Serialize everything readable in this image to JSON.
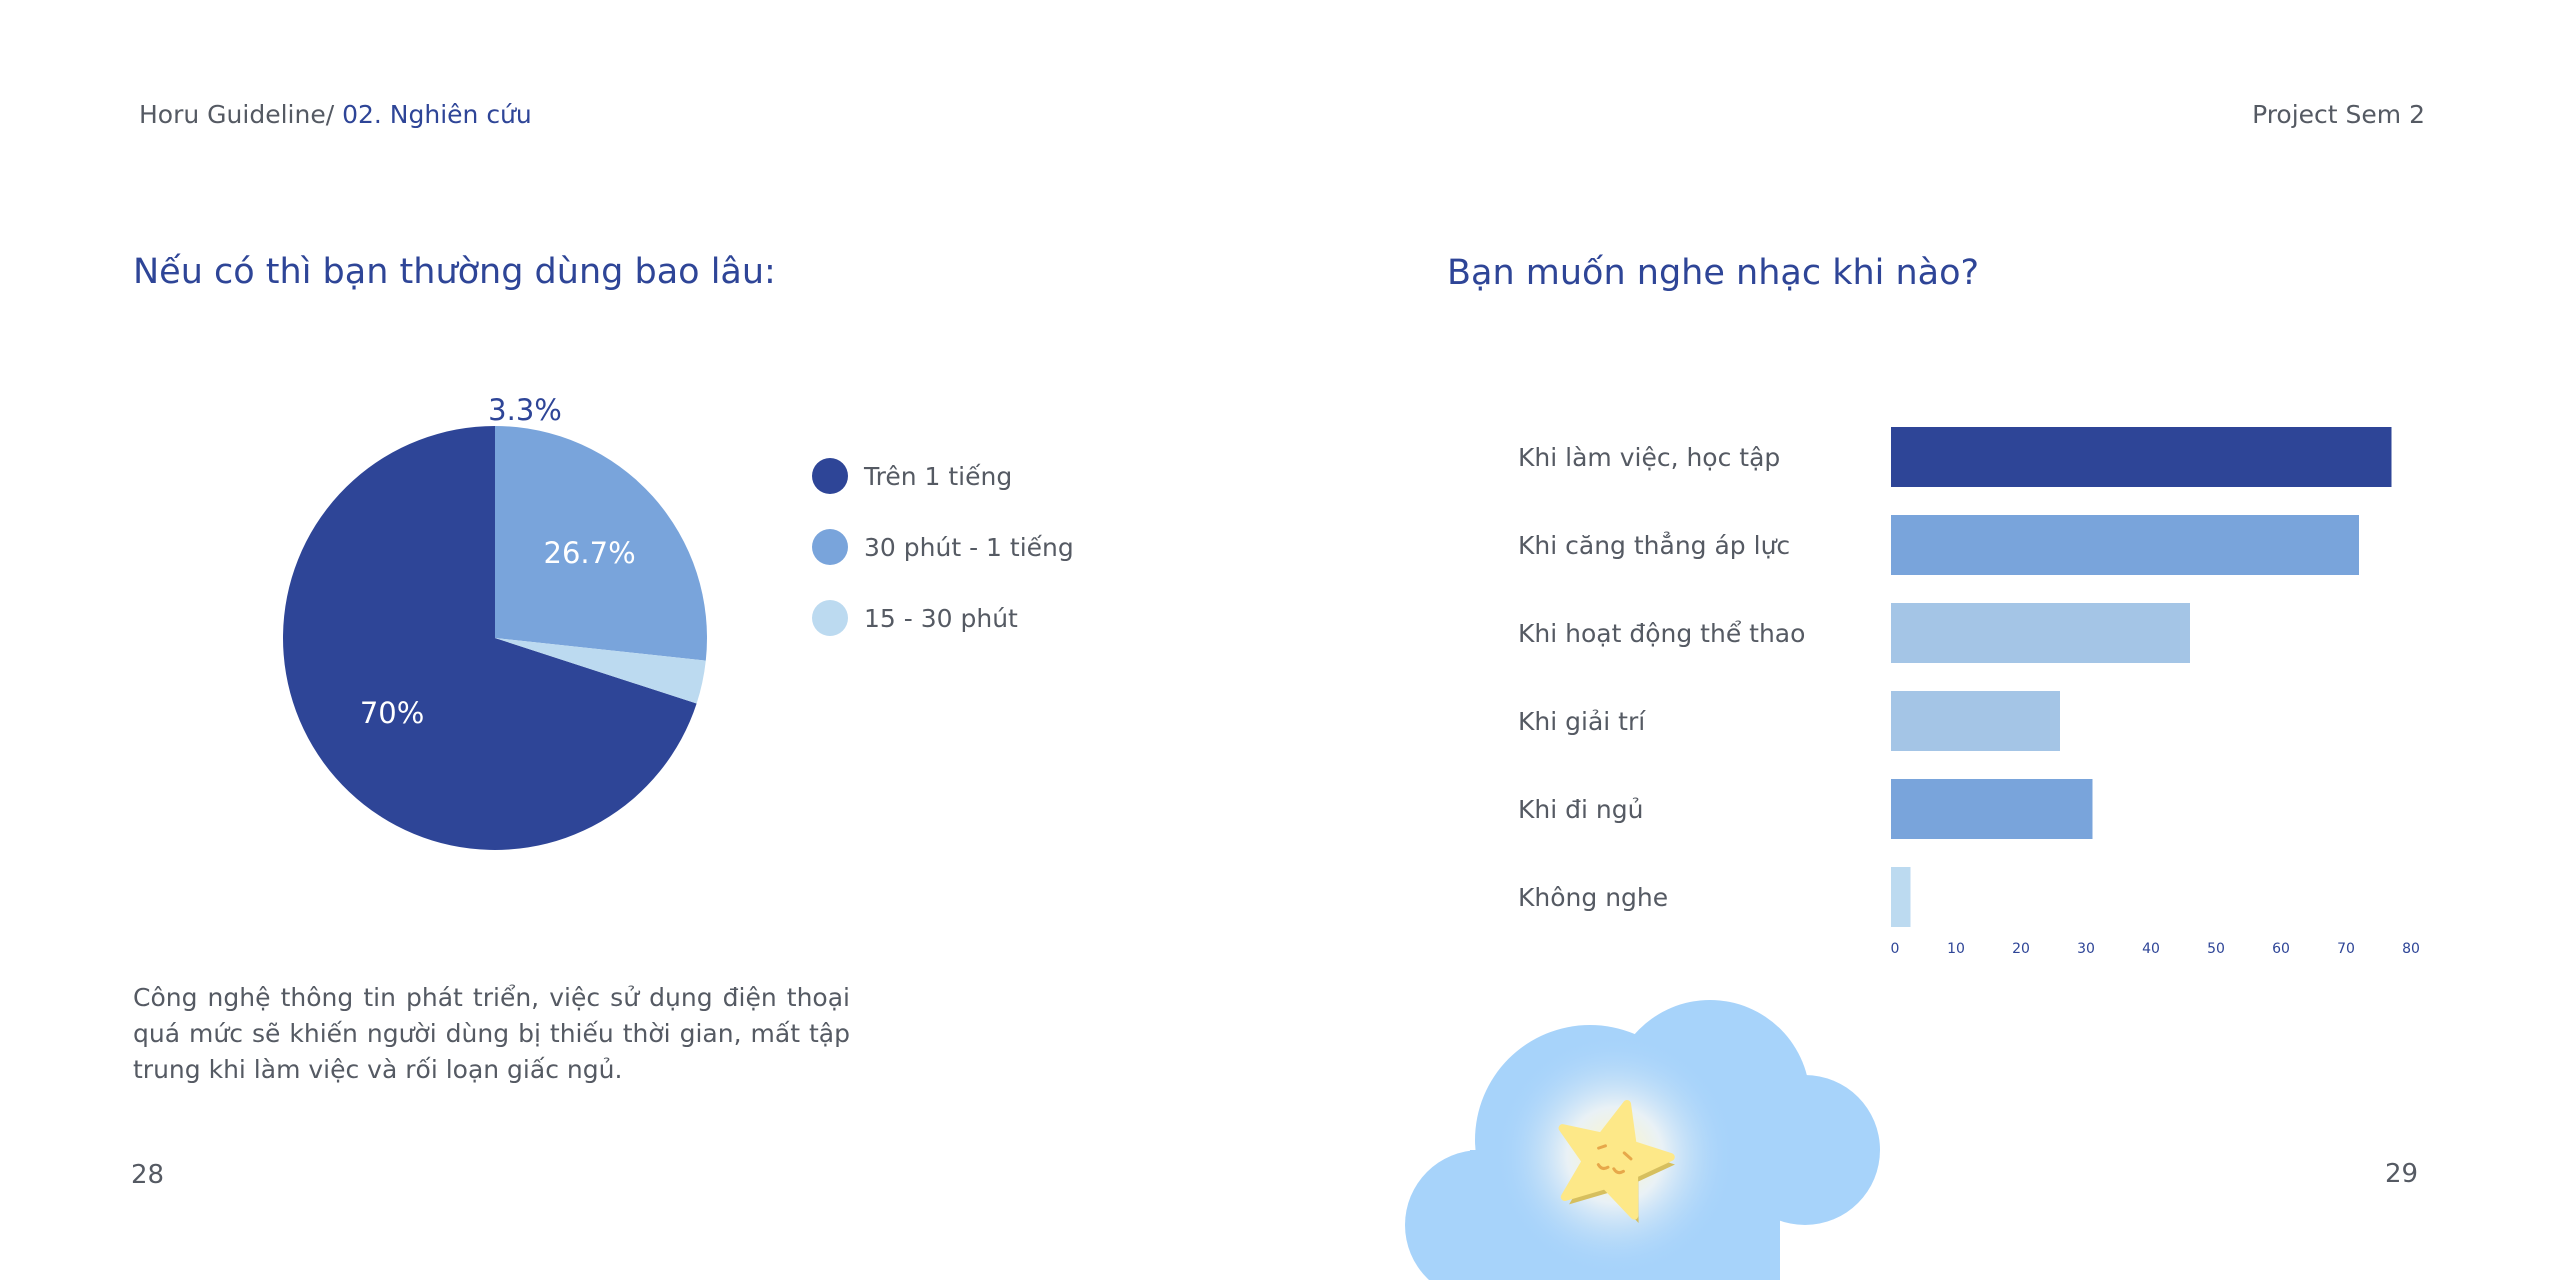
{
  "header": {
    "breadcrumb_prefix": "Horu Guideline/",
    "breadcrumb_section": "02. Nghiên cứu",
    "project": "Project Sem 2"
  },
  "left": {
    "question": "Nếu có thì bạn thường dùng bao lâu:",
    "paragraph": "Công nghệ thông tin phát triển, việc sử dụng điện thoại quá mức sẽ khiến người dùng bị thiếu thời gian, mất tập trung khi làm việc và rối loạn giấc ngủ.",
    "page_number": "28"
  },
  "right": {
    "question": "Bạn muốn nghe nhạc khi nào?",
    "page_number": "29"
  },
  "colors": {
    "dark_blue": "#2e4597",
    "mid_blue": "#79a4db",
    "light_blue": "#a4c5e6",
    "pale_blue": "#bcdaf0",
    "cloud": "#a7d3fa",
    "star": "#fde888"
  },
  "chart_data": [
    {
      "type": "pie",
      "slices": [
        {
          "label": "Trên 1 tiếng",
          "value": 70,
          "display": "70%",
          "color": "#2e4597"
        },
        {
          "label": "30 phút - 1 tiếng",
          "value": 26.7,
          "display": "26.7%",
          "color": "#79a4db"
        },
        {
          "label": "15 - 30 phút",
          "value": 3.3,
          "display": "3.3%",
          "color": "#bcdaf0"
        }
      ],
      "legend_position": "right"
    },
    {
      "type": "bar",
      "orientation": "horizontal",
      "categories": [
        "Khi làm việc, học tập",
        "Khi căng thẳng áp lực",
        "Khi hoạt động thể thao",
        "Khi giải trí",
        "Khi đi ngủ",
        "Không nghe"
      ],
      "values": [
        77,
        72,
        46,
        26,
        31,
        3
      ],
      "colors": [
        "#2e4597",
        "#79a4db",
        "#a4c5e6",
        "#a4c5e6",
        "#79a4db",
        "#bcdaf0"
      ],
      "xlim": [
        0,
        80
      ],
      "xticks": [
        "0",
        "10",
        "20",
        "30",
        "40",
        "50",
        "60",
        "70",
        "80"
      ],
      "grid": false
    }
  ]
}
